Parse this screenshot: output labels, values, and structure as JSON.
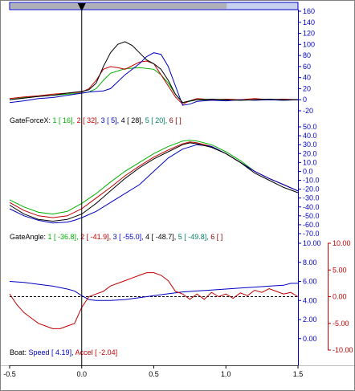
{
  "chart_data": [
    {
      "type": "line",
      "panel": "GateForceX",
      "xlim": [
        -0.5,
        1.5
      ],
      "ylim": [
        -20,
        160
      ],
      "y_ticks": [
        "160",
        "140",
        "120",
        "100",
        "80",
        "60",
        "40",
        "20",
        "0",
        "-20"
      ],
      "y_axis_color": "#0000c0",
      "legend": {
        "label": "GateForceX:",
        "entries": [
          {
            "num": "1",
            "value": "16",
            "color": "#00b000"
          },
          {
            "num": "2",
            "value": "32",
            "color": "#c00000"
          },
          {
            "num": "3",
            "value": "5",
            "color": "#0000c0"
          },
          {
            "num": "4",
            "value": "28",
            "color": "#000000"
          },
          {
            "num": "5",
            "value": "20",
            "color": "#008060"
          },
          {
            "num": "6",
            "value": "",
            "color": "#800000"
          }
        ]
      },
      "series": [
        {
          "color": "#00b000",
          "x": [
            -0.5,
            -0.4,
            -0.3,
            -0.2,
            -0.1,
            0.0,
            0.05,
            0.1,
            0.15,
            0.2,
            0.3,
            0.4,
            0.5,
            0.55,
            0.6,
            0.65,
            0.7,
            0.75,
            0.8,
            0.9,
            1.0,
            1.1,
            1.2,
            1.3,
            1.4,
            1.5
          ],
          "y": [
            0,
            4,
            6,
            8,
            10,
            12,
            14,
            20,
            35,
            48,
            56,
            58,
            55,
            45,
            30,
            10,
            -5,
            -3,
            0,
            -1,
            0,
            -1,
            0,
            0,
            -1,
            0
          ]
        },
        {
          "color": "#c00000",
          "x": [
            -0.5,
            -0.4,
            -0.3,
            -0.2,
            -0.1,
            0.0,
            0.05,
            0.1,
            0.15,
            0.2,
            0.25,
            0.3,
            0.4,
            0.45,
            0.5,
            0.55,
            0.6,
            0.65,
            0.7,
            0.75,
            0.8,
            0.9,
            1.0,
            1.1,
            1.2,
            1.3,
            1.4,
            1.5
          ],
          "y": [
            2,
            5,
            7,
            10,
            12,
            14,
            20,
            35,
            55,
            60,
            58,
            55,
            68,
            70,
            65,
            45,
            25,
            5,
            -8,
            -2,
            2,
            0,
            1,
            0,
            2,
            0,
            1,
            0
          ]
        },
        {
          "color": "#0000c0",
          "x": [
            -0.5,
            -0.4,
            -0.3,
            -0.2,
            -0.1,
            0.0,
            0.05,
            0.1,
            0.15,
            0.2,
            0.3,
            0.4,
            0.45,
            0.5,
            0.55,
            0.6,
            0.65,
            0.7,
            0.75,
            0.8,
            0.9,
            1.0,
            1.1,
            1.2,
            1.3,
            1.4,
            1.5
          ],
          "y": [
            -5,
            -2,
            2,
            4,
            8,
            12,
            14,
            15,
            16,
            20,
            45,
            65,
            78,
            85,
            82,
            60,
            25,
            -10,
            -8,
            -3,
            -1,
            -2,
            0,
            -1,
            0,
            -1,
            0
          ]
        },
        {
          "color": "#000000",
          "x": [
            -0.5,
            -0.4,
            -0.3,
            -0.2,
            -0.1,
            0.0,
            0.05,
            0.1,
            0.15,
            0.2,
            0.25,
            0.3,
            0.35,
            0.4,
            0.45,
            0.5,
            0.55,
            0.6,
            0.65,
            0.7,
            0.75,
            0.8,
            0.9,
            1.0,
            1.1,
            1.2,
            1.3,
            1.4,
            1.5
          ],
          "y": [
            0,
            3,
            6,
            8,
            12,
            15,
            18,
            30,
            60,
            85,
            100,
            105,
            98,
            85,
            72,
            65,
            55,
            35,
            10,
            -5,
            -2,
            0,
            1,
            0,
            -1,
            0,
            1,
            0,
            0
          ]
        }
      ]
    },
    {
      "type": "line",
      "panel": "GateAngle",
      "xlim": [
        -0.5,
        1.5
      ],
      "ylim": [
        -70,
        50
      ],
      "y_ticks": [
        "50.0",
        "40.0",
        "30.0",
        "20.0",
        "10.0",
        "0.0",
        "-10.0",
        "-20.0",
        "-30.0",
        "-40.0",
        "-50.0",
        "-60.0",
        "-70.0"
      ],
      "y_axis_color": "#0000c0",
      "legend": {
        "label": "GateAngle:",
        "entries": [
          {
            "num": "1",
            "value": "-36.8",
            "color": "#00b000"
          },
          {
            "num": "2",
            "value": "-41.9",
            "color": "#c00000"
          },
          {
            "num": "3",
            "value": "-55.0",
            "color": "#0000c0"
          },
          {
            "num": "4",
            "value": "-48.7",
            "color": "#000000"
          },
          {
            "num": "5",
            "value": "-49.8",
            "color": "#008060"
          },
          {
            "num": "6",
            "value": "",
            "color": "#800000"
          }
        ]
      },
      "series": [
        {
          "color": "#00b000",
          "x": [
            -0.5,
            -0.4,
            -0.3,
            -0.2,
            -0.1,
            0.0,
            0.1,
            0.2,
            0.3,
            0.4,
            0.5,
            0.6,
            0.7,
            0.75,
            0.8,
            0.9,
            1.0,
            1.1,
            1.2,
            1.3,
            1.4,
            1.5
          ],
          "y": [
            -32,
            -40,
            -46,
            -48,
            -45,
            -36,
            -25,
            -12,
            0,
            10,
            20,
            28,
            34,
            35,
            34,
            30,
            22,
            12,
            0,
            -8,
            -15,
            -22
          ]
        },
        {
          "color": "#c00000",
          "x": [
            -0.5,
            -0.4,
            -0.3,
            -0.2,
            -0.1,
            0.0,
            0.1,
            0.2,
            0.3,
            0.4,
            0.5,
            0.6,
            0.7,
            0.75,
            0.8,
            0.9,
            1.0,
            1.1,
            1.2,
            1.3,
            1.4,
            1.5
          ],
          "y": [
            -35,
            -44,
            -50,
            -52,
            -50,
            -42,
            -30,
            -18,
            -5,
            6,
            16,
            24,
            31,
            33,
            32,
            28,
            20,
            10,
            0,
            -8,
            -15,
            -22
          ]
        },
        {
          "color": "#0000c0",
          "x": [
            -0.5,
            -0.4,
            -0.3,
            -0.2,
            -0.1,
            -0.05,
            0.0,
            0.1,
            0.2,
            0.3,
            0.4,
            0.5,
            0.6,
            0.7,
            0.8,
            0.9,
            1.0,
            1.1,
            1.2,
            1.3,
            1.4,
            1.5
          ],
          "y": [
            -42,
            -50,
            -55,
            -58,
            -57,
            -55,
            -52,
            -45,
            -35,
            -25,
            -15,
            0,
            15,
            25,
            30,
            28,
            20,
            10,
            0,
            -8,
            -15,
            -22
          ]
        },
        {
          "color": "#000000",
          "x": [
            -0.5,
            -0.4,
            -0.3,
            -0.2,
            -0.1,
            0.0,
            0.1,
            0.2,
            0.3,
            0.4,
            0.5,
            0.6,
            0.7,
            0.75,
            0.8,
            0.9,
            1.0,
            1.1,
            1.2,
            1.3,
            1.4,
            1.5
          ],
          "y": [
            -38,
            -48,
            -54,
            -56,
            -54,
            -48,
            -36,
            -22,
            -8,
            4,
            14,
            22,
            30,
            32,
            31,
            27,
            20,
            10,
            -2,
            -10,
            -18,
            -24
          ]
        }
      ]
    },
    {
      "type": "line",
      "panel": "Boat",
      "xlim": [
        -0.5,
        1.5
      ],
      "ylim_left": [
        -1.2,
        10
      ],
      "ylim_right": [
        -10,
        10
      ],
      "y_ticks_left": [
        "10.00",
        "8.00",
        "6.00",
        "4.00",
        "2.00",
        "0.00"
      ],
      "y_ticks_right": [
        "10.00",
        "5.00",
        "0.00",
        "-5.00",
        "-10.00"
      ],
      "y_axis_left_color": "#0000c0",
      "y_axis_right_color": "#c00000",
      "x_ticks": [
        "-0.5",
        "0.0",
        "0.5",
        "1.0",
        "1.5"
      ],
      "x_tick_values": [
        -0.5,
        0.0,
        0.5,
        1.0,
        1.5
      ],
      "reference_line": {
        "axis": "right",
        "value": 0
      },
      "legend": {
        "label": "Boat:",
        "entries": [
          {
            "name": "Speed",
            "value": "4.19",
            "color": "#0000c0"
          },
          {
            "name": "Accel",
            "value": "-2.04",
            "color": "#c00000"
          }
        ]
      },
      "series": [
        {
          "name": "Speed",
          "axis": "left",
          "color": "#0000c0",
          "x": [
            -0.5,
            -0.4,
            -0.3,
            -0.2,
            -0.1,
            -0.05,
            0.0,
            0.05,
            0.1,
            0.2,
            0.3,
            0.4,
            0.5,
            0.6,
            0.7,
            0.8,
            0.9,
            1.0,
            1.1,
            1.2,
            1.3,
            1.4,
            1.45,
            1.5
          ],
          "y": [
            6.0,
            5.9,
            5.7,
            5.5,
            5.2,
            5.0,
            4.5,
            4.1,
            4.0,
            4.0,
            4.1,
            4.3,
            4.5,
            4.7,
            4.9,
            5.0,
            5.1,
            5.2,
            5.3,
            5.4,
            5.5,
            5.6,
            5.8,
            5.8
          ]
        },
        {
          "name": "Accel",
          "axis": "right",
          "color": "#c00000",
          "x": [
            -0.5,
            -0.45,
            -0.4,
            -0.35,
            -0.3,
            -0.25,
            -0.2,
            -0.15,
            -0.1,
            -0.05,
            0.0,
            0.05,
            0.1,
            0.15,
            0.2,
            0.25,
            0.3,
            0.35,
            0.4,
            0.45,
            0.5,
            0.55,
            0.6,
            0.65,
            0.7,
            0.75,
            0.8,
            0.85,
            0.9,
            0.95,
            1.0,
            1.05,
            1.1,
            1.15,
            1.2,
            1.25,
            1.3,
            1.35,
            1.4,
            1.45,
            1.5
          ],
          "y": [
            0.5,
            -1.5,
            -3,
            -4,
            -5,
            -5.5,
            -6,
            -6,
            -5.5,
            -5,
            -2,
            0,
            0.5,
            1,
            2,
            2.5,
            3,
            3.5,
            4,
            4.5,
            4.5,
            4,
            3,
            1,
            0.5,
            -0.5,
            0.5,
            -0.5,
            0.8,
            0,
            0.5,
            -0.3,
            0.7,
            0.2,
            1.2,
            0.8,
            1.5,
            1,
            0.5,
            0.8,
            0
          ]
        }
      ]
    }
  ],
  "top_scrollbar": {
    "range": [
      -0.5,
      1.5
    ],
    "marker_x": 0.0,
    "inner_end": 1.0
  }
}
